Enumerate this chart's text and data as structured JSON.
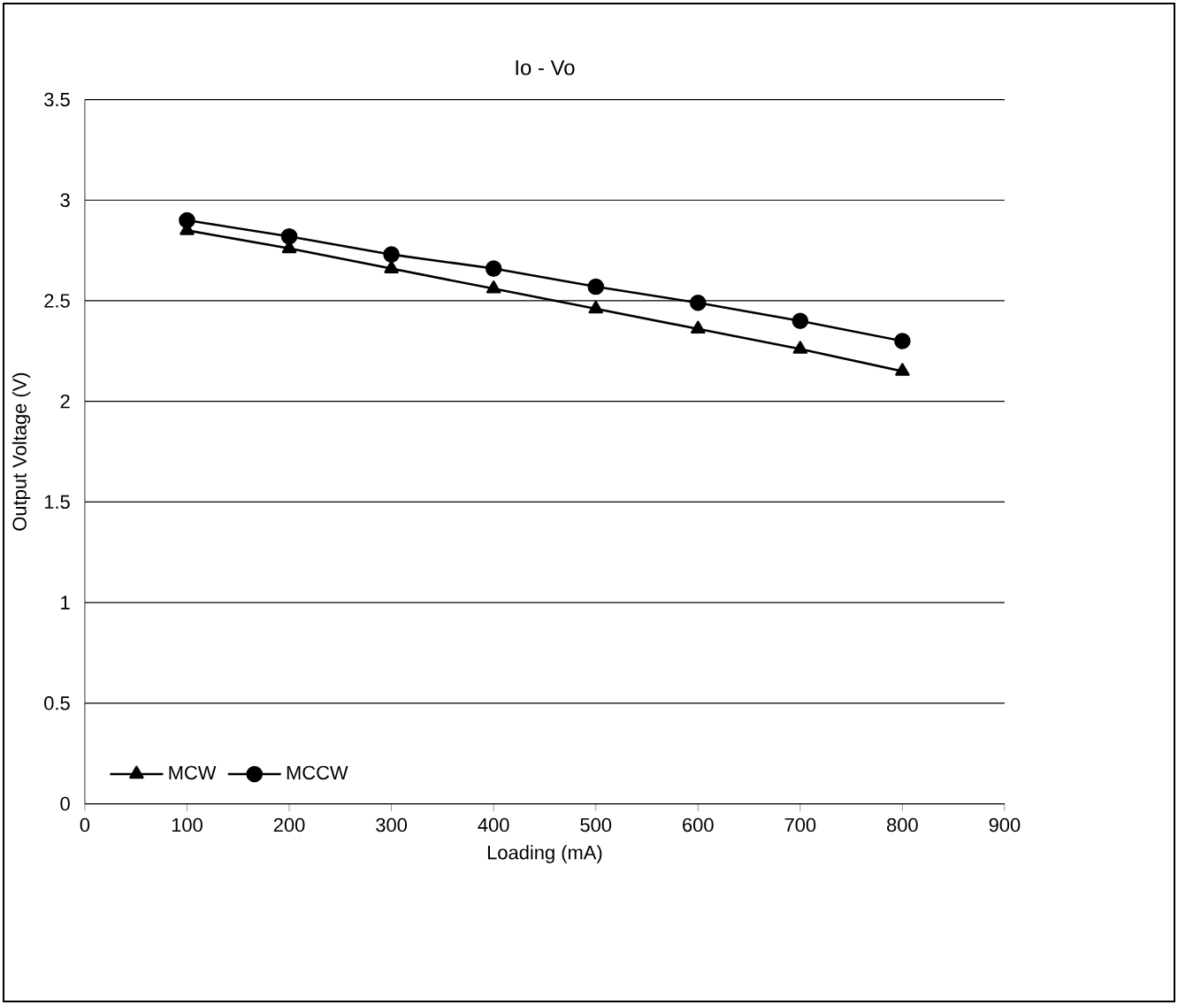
{
  "chart_data": {
    "type": "line",
    "title": "Io - Vo",
    "xlabel": "Loading (mA)",
    "ylabel": "Output Voltage (V)",
    "x": [
      100,
      200,
      300,
      400,
      500,
      600,
      700,
      800
    ],
    "series": [
      {
        "name": "MCW",
        "color": "#000000",
        "marker": "triangle",
        "values": [
          2.85,
          2.76,
          2.66,
          2.56,
          2.46,
          2.36,
          2.26,
          2.15
        ]
      },
      {
        "name": "MCCW",
        "color": "#000000",
        "marker": "circle",
        "values": [
          2.9,
          2.82,
          2.73,
          2.66,
          2.57,
          2.49,
          2.4,
          2.3
        ]
      }
    ],
    "xlim": [
      0,
      900
    ],
    "xticks": [
      0,
      100,
      200,
      300,
      400,
      500,
      600,
      700,
      800,
      900
    ],
    "ylim": [
      0,
      3.5
    ],
    "yticks": [
      0,
      0.5,
      1,
      1.5,
      2,
      2.5,
      3,
      3.5
    ],
    "grid": "y",
    "legend": "bottom left",
    "line_style": "solid"
  }
}
